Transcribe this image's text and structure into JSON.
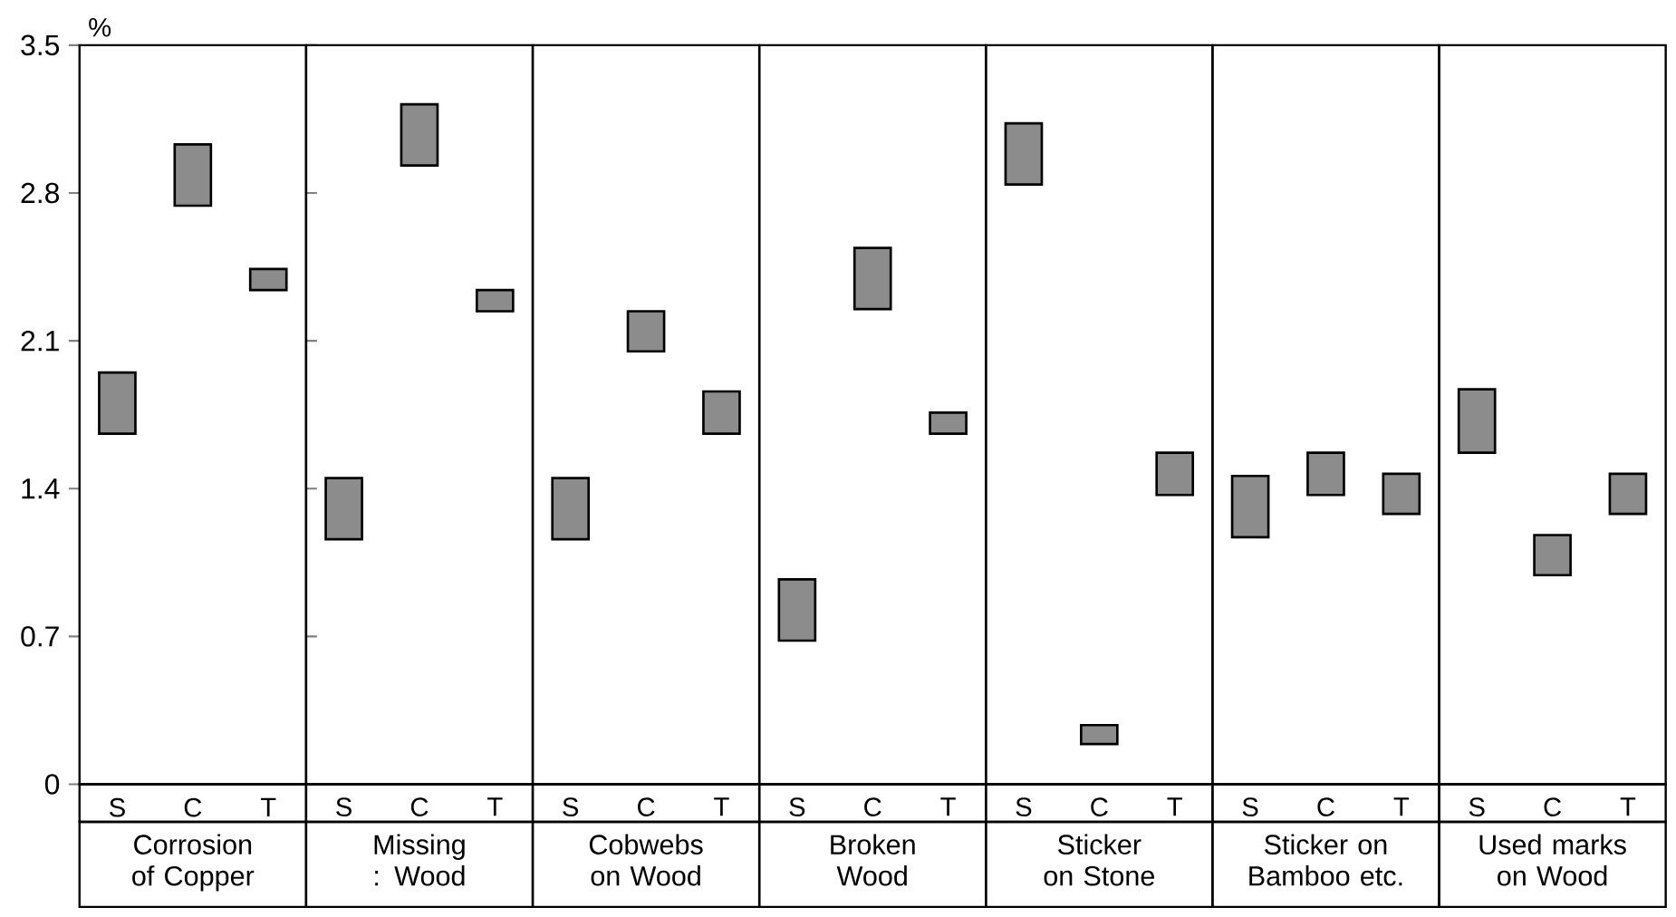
{
  "chart_data": [
    {
      "type": "bar",
      "xlabel": "Corrosion of Copper",
      "ylabel": "%",
      "categories": [
        "S",
        "C",
        "T"
      ],
      "base": [
        1.66,
        2.74,
        2.34
      ],
      "values": [
        0.29,
        0.29,
        0.1
      ],
      "color": "#8c8c8c",
      "ylim": [
        0,
        3.5
      ],
      "yticks": [
        0,
        0.7,
        1.4,
        2.1,
        2.8,
        3.5
      ]
    },
    {
      "type": "bar",
      "xlabel": "Missing : Wood",
      "categories": [
        "S",
        "C",
        "T"
      ],
      "base": [
        1.16,
        2.93,
        2.24
      ],
      "values": [
        0.29,
        0.29,
        0.1
      ],
      "color": "#8c8c8c",
      "ylim": [
        0,
        3.5
      ],
      "yticks": [
        0,
        0.7,
        1.4,
        2.1,
        2.8,
        3.5
      ],
      "tick_labels": "x"
    },
    {
      "type": "bar",
      "xlabel": "Cobwebs on Wood",
      "categories": [
        "S",
        "C",
        "T"
      ],
      "base": [
        1.16,
        2.05,
        1.66
      ],
      "values": [
        0.29,
        0.19,
        0.2
      ],
      "color": "#8c8c8c",
      "ylim": [
        0,
        3.5
      ],
      "yticks": [
        0,
        0.7,
        1.4,
        2.1,
        2.8,
        3.5
      ],
      "tick_labels": "x"
    },
    {
      "type": "bar",
      "xlabel": "Broken Wood",
      "categories": [
        "S",
        "C",
        "T"
      ],
      "base": [
        0.68,
        2.25,
        1.66
      ],
      "values": [
        0.29,
        0.29,
        0.1
      ],
      "color": "#8c8c8c",
      "ylim": [
        0,
        3.5
      ],
      "yticks": [
        0,
        0.7,
        1.4,
        2.1,
        2.8,
        3.5
      ],
      "tick_labels": "x"
    },
    {
      "type": "bar",
      "xlabel": "Sticker on Stone",
      "categories": [
        "S",
        "C",
        "T"
      ],
      "base": [
        2.84,
        0.19,
        1.37
      ],
      "values": [
        0.29,
        0.09,
        0.2
      ],
      "color": "#8c8c8c",
      "ylim": [
        0,
        3.5
      ],
      "yticks": [
        0,
        0.7,
        1.4,
        2.1,
        2.8,
        3.5
      ],
      "tick_labels": "x"
    },
    {
      "type": "bar",
      "xlabel": "Sticker on Bamboo etc.",
      "categories": [
        "S",
        "C",
        "T"
      ],
      "base": [
        1.17,
        1.37,
        1.28
      ],
      "values": [
        0.29,
        0.2,
        0.19
      ],
      "color": "#8c8c8c",
      "ylim": [
        0,
        3.5
      ],
      "yticks": [
        0,
        0.7,
        1.4,
        2.1,
        2.8,
        3.5
      ],
      "tick_labels": "x"
    },
    {
      "type": "bar",
      "xlabel": "Used marks on Wood",
      "categories": [
        "S",
        "C",
        "T"
      ],
      "base": [
        1.57,
        0.99,
        1.28
      ],
      "values": [
        0.3,
        0.19,
        0.19
      ],
      "color": "#8c8c8c",
      "ylim": [
        0,
        3.5
      ],
      "yticks": [
        0,
        0.7,
        1.4,
        2.1,
        2.8,
        3.5
      ],
      "tick_labels": "x"
    }
  ]
}
